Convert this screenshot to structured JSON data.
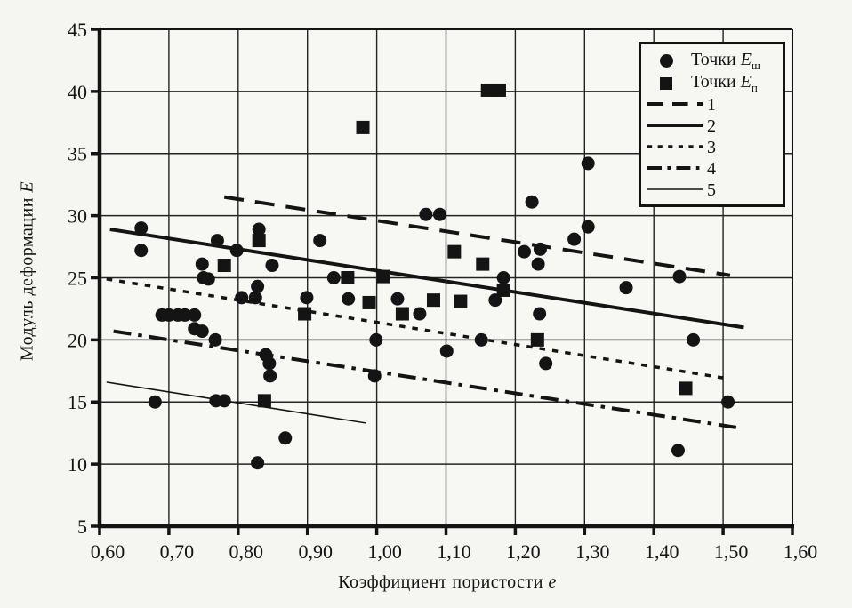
{
  "colors": {
    "ink": "#141414",
    "paper": "#f5f5f1",
    "grid": "#232323"
  },
  "chart_data": {
    "type": "scatter",
    "title": "",
    "xlabel": {
      "text": "Коэффициент пористости",
      "symbol": "e"
    },
    "ylabel": {
      "text": "Модуль деформации",
      "symbol": "E"
    },
    "xlim": [
      0.6,
      1.6
    ],
    "ylim": [
      5,
      45
    ],
    "grid": true,
    "x_ticks": [
      {
        "value": 0.6,
        "label": "0,60"
      },
      {
        "value": 0.7,
        "label": "0,70"
      },
      {
        "value": 0.8,
        "label": "0,80"
      },
      {
        "value": 0.9,
        "label": "0,90"
      },
      {
        "value": 1.0,
        "label": "1,00"
      },
      {
        "value": 1.1,
        "label": "1,10"
      },
      {
        "value": 1.2,
        "label": "1,20"
      },
      {
        "value": 1.3,
        "label": "1,30"
      },
      {
        "value": 1.4,
        "label": "1,40"
      },
      {
        "value": 1.5,
        "label": "1,50"
      },
      {
        "value": 1.6,
        "label": "1,60"
      }
    ],
    "y_ticks": [
      {
        "value": 45,
        "label": "45"
      },
      {
        "value": 40,
        "label": "40"
      },
      {
        "value": 35,
        "label": "35"
      },
      {
        "value": 30,
        "label": "30"
      },
      {
        "value": 25,
        "label": "25"
      },
      {
        "value": 20,
        "label": "20"
      },
      {
        "value": 15,
        "label": "15"
      },
      {
        "value": 10,
        "label": "10"
      },
      {
        "value": 5,
        "label": "5"
      }
    ],
    "series": [
      {
        "name": "Точки Еш",
        "marker": "circle",
        "points": [
          [
            0.66,
            29.0
          ],
          [
            0.66,
            27.2
          ],
          [
            0.68,
            15.0
          ],
          [
            0.69,
            22.0
          ],
          [
            0.7,
            22.0
          ],
          [
            0.713,
            22.0
          ],
          [
            0.723,
            22.0
          ],
          [
            0.737,
            22.0
          ],
          [
            0.737,
            20.9
          ],
          [
            0.748,
            20.7
          ],
          [
            0.748,
            26.1
          ],
          [
            0.75,
            25.0
          ],
          [
            0.757,
            24.9
          ],
          [
            0.77,
            28.0
          ],
          [
            0.767,
            20.0
          ],
          [
            0.768,
            15.1
          ],
          [
            0.78,
            15.1
          ],
          [
            0.798,
            27.2
          ],
          [
            0.805,
            23.4
          ],
          [
            0.83,
            28.9
          ],
          [
            0.828,
            24.3
          ],
          [
            0.825,
            23.4
          ],
          [
            0.828,
            10.1
          ],
          [
            0.84,
            18.8
          ],
          [
            0.845,
            18.1
          ],
          [
            0.849,
            26.0
          ],
          [
            0.846,
            17.1
          ],
          [
            0.868,
            12.1
          ],
          [
            0.899,
            23.4
          ],
          [
            0.918,
            28.0
          ],
          [
            0.938,
            25.0
          ],
          [
            0.959,
            23.3
          ],
          [
            0.999,
            20.0
          ],
          [
            0.997,
            17.1
          ],
          [
            1.03,
            23.3
          ],
          [
            1.062,
            22.1
          ],
          [
            1.071,
            30.1
          ],
          [
            1.091,
            30.1
          ],
          [
            1.101,
            19.1
          ],
          [
            1.151,
            20.0
          ],
          [
            1.171,
            23.2
          ],
          [
            1.183,
            25.0
          ],
          [
            1.213,
            27.1
          ],
          [
            1.224,
            31.1
          ],
          [
            1.233,
            26.1
          ],
          [
            1.236,
            27.3
          ],
          [
            1.235,
            22.1
          ],
          [
            1.244,
            18.1
          ],
          [
            1.285,
            28.1
          ],
          [
            1.305,
            34.2
          ],
          [
            1.305,
            29.1
          ],
          [
            1.36,
            24.2
          ],
          [
            1.437,
            25.1
          ],
          [
            1.435,
            11.1
          ],
          [
            1.457,
            20.0
          ],
          [
            1.507,
            15.0
          ]
        ]
      },
      {
        "name": "Точки Еп",
        "marker": "square",
        "points": [
          [
            0.78,
            26.0
          ],
          [
            0.83,
            28.0
          ],
          [
            0.838,
            15.1
          ],
          [
            0.896,
            22.1
          ],
          [
            0.958,
            25.0
          ],
          [
            0.98,
            37.1
          ],
          [
            0.989,
            23.0
          ],
          [
            1.01,
            25.1
          ],
          [
            1.037,
            22.1
          ],
          [
            1.082,
            23.2
          ],
          [
            1.112,
            27.1
          ],
          [
            1.121,
            23.1
          ],
          [
            1.153,
            26.1
          ],
          [
            1.16,
            40.1
          ],
          [
            1.177,
            40.1
          ],
          [
            1.183,
            24.0
          ],
          [
            1.232,
            20.0
          ],
          [
            1.446,
            16.1
          ]
        ]
      }
    ],
    "trend_lines": [
      {
        "label": "1",
        "style": "long-dash",
        "dash": "22 13",
        "width": 4,
        "from": [
          0.78,
          31.5
        ],
        "to": [
          1.51,
          25.2
        ]
      },
      {
        "label": "2",
        "style": "solid",
        "dash": "",
        "width": 4,
        "from": [
          0.615,
          28.9
        ],
        "to": [
          1.53,
          21.0
        ]
      },
      {
        "label": "3",
        "style": "dotted",
        "dash": "6.5 8",
        "width": 3.5,
        "from": [
          0.61,
          24.9
        ],
        "to": [
          1.505,
          16.9
        ]
      },
      {
        "label": "4",
        "style": "dash-dot",
        "dash": "20 8 4.5 8",
        "width": 4,
        "from": [
          0.62,
          20.7
        ],
        "to": [
          1.525,
          12.9
        ]
      },
      {
        "label": "5",
        "style": "thin",
        "dash": "",
        "width": 1.6,
        "from": [
          0.61,
          16.6
        ],
        "to": [
          0.985,
          13.3
        ]
      }
    ],
    "legend": {
      "position": "top-right",
      "marker_entries": [
        {
          "marker": "circle",
          "text": "Точки",
          "symbol": "E",
          "sub": "ш"
        },
        {
          "marker": "square",
          "text": "Точки",
          "symbol": "E",
          "sub": "п"
        }
      ],
      "line_entries": [
        {
          "label": "1"
        },
        {
          "label": "2"
        },
        {
          "label": "3"
        },
        {
          "label": "4"
        },
        {
          "label": "5"
        }
      ]
    }
  }
}
